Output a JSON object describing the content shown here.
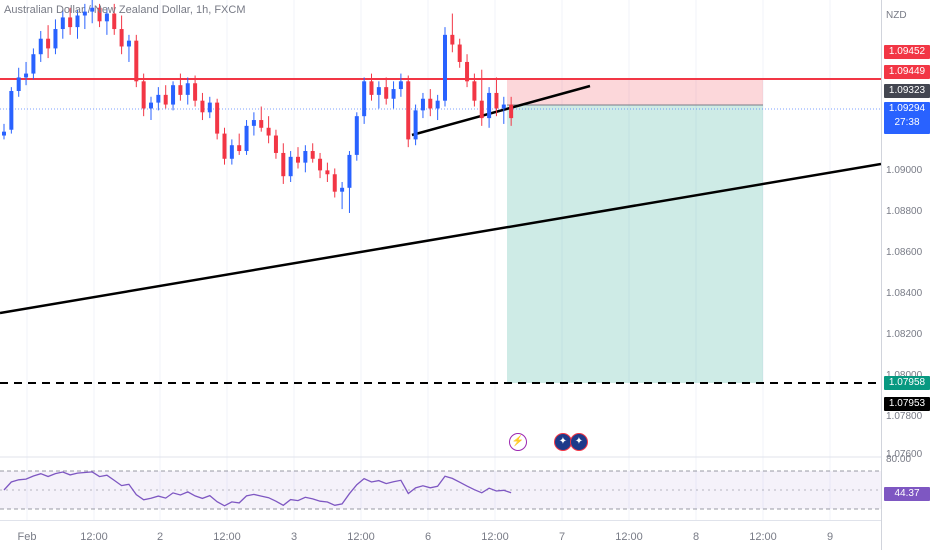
{
  "symbol": {
    "title": "Australian Dollar / New Zealand Dollar, 1h, FXCM",
    "currency": "NZD"
  },
  "price_axis": {
    "ticks": [
      "1.09000",
      "1.08800",
      "1.08600",
      "1.08400",
      "1.08200",
      "1.08000",
      "1.07800",
      "1.07600"
    ],
    "markers": {
      "stop_top": "1.09452",
      "stop_line": "1.09449",
      "entry": "1.09323",
      "last_price": "1.09294",
      "countdown": "27:38",
      "target_top": "1.07958",
      "target_line": "1.07953",
      "rsi_value": "44.37",
      "rsi_level": "80.00"
    },
    "colors": {
      "stop": "#f23645",
      "entry": "#434651",
      "last": "#2962ff",
      "target_top": "#089981",
      "target_line": "#000000",
      "rsi": "#7e57c2"
    }
  },
  "time_axis": {
    "labels": [
      "Feb",
      "12:00",
      "2",
      "12:00",
      "3",
      "12:00",
      "6",
      "12:00",
      "7",
      "12:00",
      "8",
      "12:00",
      "9"
    ]
  },
  "events": {
    "flash_icon": "lightning-icon",
    "flag_icons": [
      "au-flag-icon",
      "nz-flag-icon"
    ]
  },
  "chart_data": {
    "type": "candlestick",
    "title": "Australian Dollar / New Zealand Dollar, 1h, FXCM",
    "ylim": [
      1.0755,
      1.099
    ],
    "up_color": "#2962ff",
    "down_color": "#f23645",
    "candles": [
      [
        1.092,
        1.0926,
        1.0918,
        1.0922
      ],
      [
        1.0923,
        1.0945,
        1.0921,
        1.0943
      ],
      [
        1.0943,
        1.0955,
        1.094,
        1.095
      ],
      [
        1.095,
        1.0958,
        1.0946,
        1.0952
      ],
      [
        1.0952,
        1.0965,
        1.0949,
        1.0962
      ],
      [
        1.0962,
        1.0974,
        1.0958,
        1.097
      ],
      [
        1.097,
        1.0977,
        1.096,
        1.0965
      ],
      [
        1.0965,
        1.098,
        1.0962,
        1.0975
      ],
      [
        1.0975,
        1.0985,
        1.097,
        1.0981
      ],
      [
        1.0981,
        1.0986,
        1.0972,
        1.0976
      ],
      [
        1.0976,
        1.0985,
        1.097,
        1.0982
      ],
      [
        1.0982,
        1.0988,
        1.0975,
        1.0984
      ],
      [
        1.0984,
        1.099,
        1.0978,
        1.0986
      ],
      [
        1.0986,
        1.0988,
        1.0976,
        1.0979
      ],
      [
        1.0979,
        1.0986,
        1.0972,
        1.0983
      ],
      [
        1.0983,
        1.0988,
        1.0972,
        1.0975
      ],
      [
        1.0975,
        1.0982,
        1.0962,
        1.0966
      ],
      [
        1.0966,
        1.0972,
        1.0958,
        1.0969
      ],
      [
        1.0969,
        1.0972,
        1.0945,
        1.0948
      ],
      [
        1.0948,
        1.0952,
        1.093,
        1.0934
      ],
      [
        1.0934,
        1.094,
        1.0928,
        1.0937
      ],
      [
        1.0937,
        1.0945,
        1.0933,
        1.0941
      ],
      [
        1.0941,
        1.0946,
        1.0934,
        1.0936
      ],
      [
        1.0936,
        1.0948,
        1.0933,
        1.0946
      ],
      [
        1.0946,
        1.0952,
        1.0938,
        1.0941
      ],
      [
        1.0941,
        1.095,
        1.0936,
        1.0947
      ],
      [
        1.0947,
        1.0951,
        1.0935,
        1.0938
      ],
      [
        1.0938,
        1.0942,
        1.0928,
        1.0932
      ],
      [
        1.0932,
        1.094,
        1.0929,
        1.0937
      ],
      [
        1.0937,
        1.0939,
        1.0918,
        1.0921
      ],
      [
        1.0921,
        1.0924,
        1.0905,
        1.0908
      ],
      [
        1.0908,
        1.0918,
        1.0905,
        1.0915
      ],
      [
        1.0915,
        1.0921,
        1.091,
        1.0912
      ],
      [
        1.0912,
        1.0928,
        1.091,
        1.0925
      ],
      [
        1.0925,
        1.0932,
        1.092,
        1.0928
      ],
      [
        1.0928,
        1.0935,
        1.0922,
        1.0924
      ],
      [
        1.0924,
        1.093,
        1.0916,
        1.092
      ],
      [
        1.092,
        1.0923,
        1.0908,
        1.0911
      ],
      [
        1.0911,
        1.0916,
        1.0895,
        1.0899
      ],
      [
        1.0899,
        1.0912,
        1.0896,
        1.0909
      ],
      [
        1.0909,
        1.0914,
        1.0903,
        1.0906
      ],
      [
        1.0906,
        1.0915,
        1.0901,
        1.0912
      ],
      [
        1.0912,
        1.0916,
        1.0906,
        1.0908
      ],
      [
        1.0908,
        1.0911,
        1.0898,
        1.0902
      ],
      [
        1.0902,
        1.0906,
        1.0896,
        1.09
      ],
      [
        1.09,
        1.0903,
        1.0888,
        1.0891
      ],
      [
        1.0891,
        1.0896,
        1.0882,
        1.0893
      ],
      [
        1.0893,
        1.0912,
        1.088,
        1.091
      ],
      [
        1.091,
        1.0932,
        1.0907,
        1.093
      ],
      [
        1.093,
        1.095,
        1.0926,
        1.0948
      ],
      [
        1.0948,
        1.0952,
        1.0938,
        1.0941
      ],
      [
        1.0941,
        1.0948,
        1.0934,
        1.0945
      ],
      [
        1.0945,
        1.095,
        1.0936,
        1.0939
      ],
      [
        1.0939,
        1.0948,
        1.0934,
        1.0944
      ],
      [
        1.0944,
        1.0952,
        1.094,
        1.0948
      ],
      [
        1.0948,
        1.0951,
        1.0914,
        1.0918
      ],
      [
        1.0918,
        1.0936,
        1.0915,
        1.0933
      ],
      [
        1.0933,
        1.0942,
        1.0929,
        1.0939
      ],
      [
        1.0939,
        1.0944,
        1.093,
        1.0934
      ],
      [
        1.0934,
        1.0941,
        1.0928,
        1.0938
      ],
      [
        1.0938,
        1.0976,
        1.0935,
        1.0972
      ],
      [
        1.0972,
        1.0983,
        1.0963,
        1.0967
      ],
      [
        1.0967,
        1.097,
        1.0955,
        1.0958
      ],
      [
        1.0958,
        1.0962,
        1.0945,
        1.0948
      ],
      [
        1.0948,
        1.0952,
        1.0935,
        1.0938
      ],
      [
        1.0938,
        1.0954,
        1.0925,
        1.0929
      ],
      [
        1.0929,
        1.0945,
        1.0924,
        1.0942
      ],
      [
        1.0942,
        1.095,
        1.093,
        1.0934
      ],
      [
        1.0934,
        1.094,
        1.0926,
        1.0936
      ],
      [
        1.0936,
        1.094,
        1.0925,
        1.0929
      ]
    ],
    "drawings": {
      "stop_level": 1.09449,
      "entry_level": 1.09323,
      "last_price": 1.09294,
      "target_level": 1.07953,
      "long_trendline": [
        [
          1.083,
          1.0902
        ]
      ],
      "short_trendline": [
        [
          1.0916,
          1.0943
        ]
      ]
    },
    "rsi": {
      "value": 44.37,
      "upper": 70,
      "lower": 30,
      "level_label": 80.0
    }
  }
}
